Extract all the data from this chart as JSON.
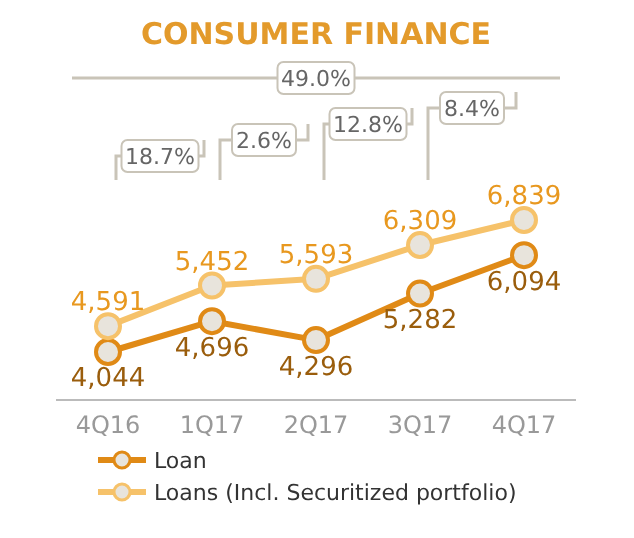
{
  "chart_data": {
    "type": "line",
    "title": "CONSUMER FINANCE",
    "categories": [
      "4Q16",
      "1Q17",
      "2Q17",
      "3Q17",
      "4Q17"
    ],
    "series": [
      {
        "name": "Loan",
        "color": "#e08a16",
        "values": [
          4044,
          4696,
          4296,
          5282,
          6094
        ],
        "value_labels": [
          "4,044",
          "4,696",
          "4,296",
          "5,282",
          "6,094"
        ]
      },
      {
        "name": "Loans (Incl. Securitized portfolio)",
        "color": "#f6c26a",
        "values": [
          4591,
          5452,
          5593,
          6309,
          6839
        ],
        "value_labels": [
          "4,591",
          "5,452",
          "5,593",
          "6,309",
          "6,839"
        ]
      }
    ],
    "annotations": [
      "49.0%",
      "18.7%",
      "2.6%",
      "12.8%",
      "8.4%"
    ],
    "marker": "circle",
    "legend": "bottom",
    "tick_labels": "x"
  }
}
